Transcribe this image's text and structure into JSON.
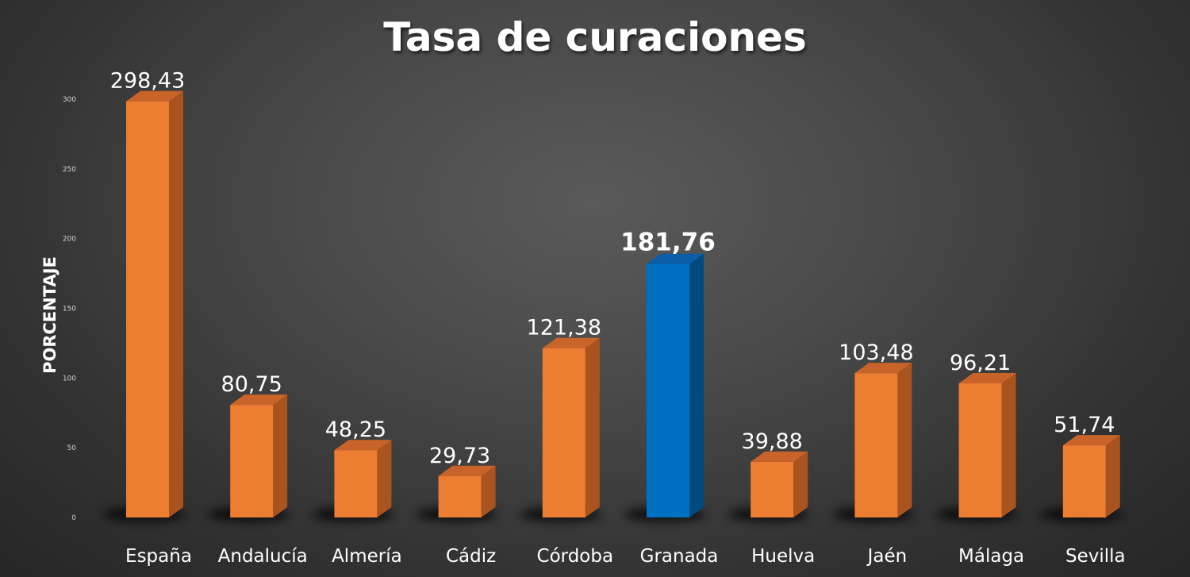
{
  "chart_data": {
    "type": "bar",
    "title": "Tasa de curaciones",
    "ylabel": "PORCENTAJE",
    "xlabel": "",
    "ylim": [
      0,
      300
    ],
    "yticks": [
      "0",
      "50",
      "100",
      "150",
      "200",
      "250",
      "300"
    ],
    "categories": [
      "España",
      "Andalucía",
      "Almería",
      "Cádiz",
      "Córdoba",
      "Granada",
      "Huelva",
      "Jaén",
      "Málaga",
      "Sevilla"
    ],
    "values": [
      298.43,
      80.75,
      48.25,
      29.73,
      121.38,
      181.76,
      39.88,
      103.48,
      96.21,
      51.74
    ],
    "value_labels": [
      "298,43",
      "80,75",
      "48,25",
      "29,73",
      "121,38",
      "181,76",
      "39,88",
      "103,48",
      "96,21",
      "51,74"
    ],
    "highlight_category": "Granada",
    "grid": false,
    "legend": "none",
    "colors": {
      "bar": "#ed7d31",
      "bar_side": "#a9541e",
      "bar_top": "#c8642a",
      "highlight": "#0070c0",
      "highlight_side": "#004a80",
      "highlight_top": "#0a5ea8",
      "text": "#ffffff",
      "tick": "#d0d0d0"
    }
  }
}
